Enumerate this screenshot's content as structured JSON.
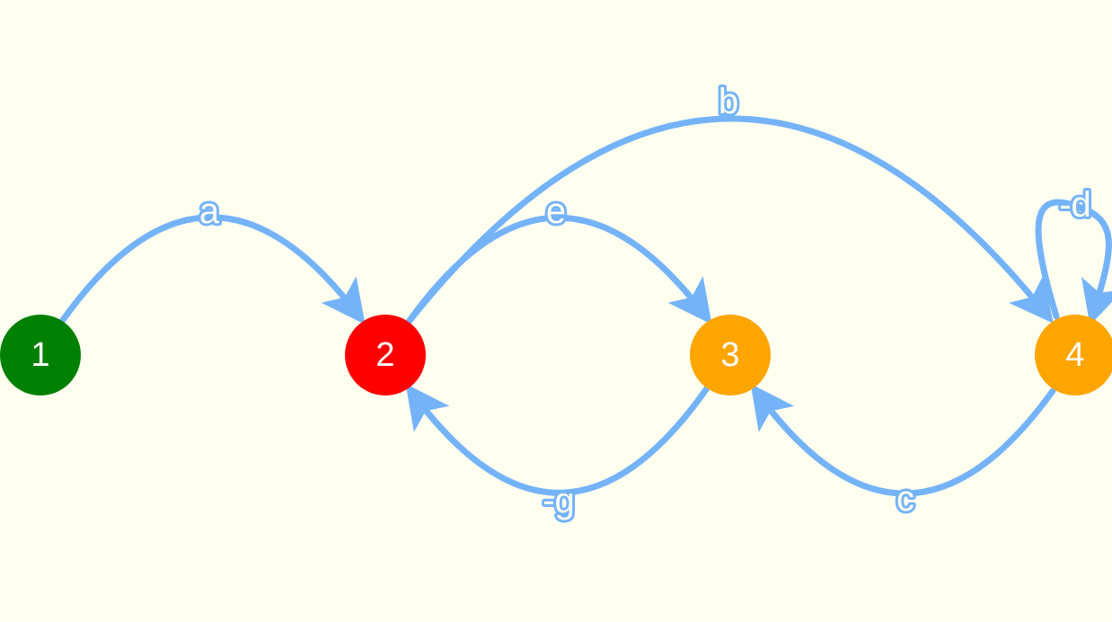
{
  "graph": {
    "edge_color": "#75B3F8",
    "background": "#FFFFF0",
    "nodes": [
      {
        "id": "1",
        "label": "1",
        "color": "#008000"
      },
      {
        "id": "2",
        "label": "2",
        "color": "#FF0000"
      },
      {
        "id": "3",
        "label": "3",
        "color": "#FFA500"
      },
      {
        "id": "4",
        "label": "4",
        "color": "#FFA500"
      }
    ],
    "edges": [
      {
        "id": "a",
        "label": "a",
        "from": "1",
        "to": "2"
      },
      {
        "id": "b",
        "label": "b",
        "from": "2",
        "to": "4"
      },
      {
        "id": "e",
        "label": "e",
        "from": "2",
        "to": "3"
      },
      {
        "id": "d",
        "label": "-d",
        "from": "4",
        "to": "4"
      },
      {
        "id": "g",
        "label": "-g",
        "from": "3",
        "to": "2"
      },
      {
        "id": "c",
        "label": "c",
        "from": "4",
        "to": "3"
      }
    ]
  }
}
